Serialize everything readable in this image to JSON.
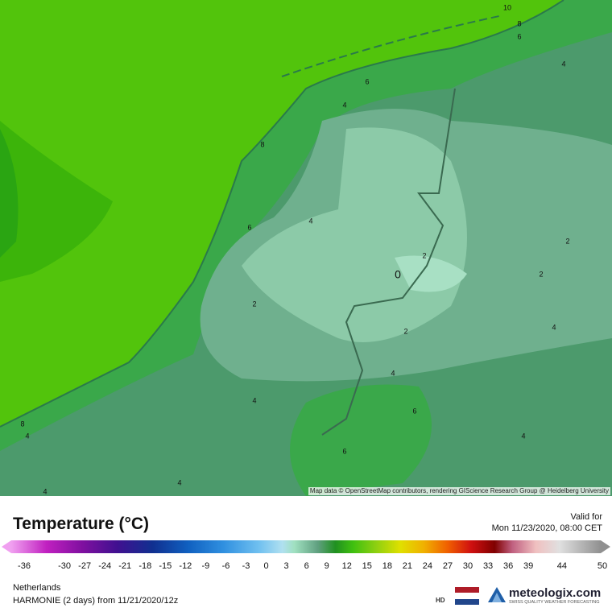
{
  "map": {
    "contour_labels": [
      "10",
      "8",
      "6",
      "6",
      "4",
      "4",
      "8",
      "4",
      "6",
      "2",
      "0",
      "2",
      "2",
      "2",
      "2",
      "4",
      "4",
      "4",
      "6",
      "8",
      "4",
      "4",
      "4",
      "4",
      "6"
    ],
    "attribution": "Map data © OpenStreetMap contributors, rendering GIScience Research Group @ Heidelberg University"
  },
  "legend": {
    "title": "Temperature (°C)",
    "valid_label": "Valid for",
    "valid_time": "Mon 11/23/2020, 08:00 CET",
    "ticks": [
      -36,
      -30,
      -27,
      -24,
      -21,
      -18,
      -15,
      -12,
      -9,
      -6,
      -3,
      0,
      3,
      6,
      9,
      12,
      15,
      18,
      21,
      24,
      27,
      30,
      33,
      36,
      39,
      44,
      50
    ],
    "region": "Netherlands",
    "model": "HARMONIE (2 days) from 11/21/2020/12z",
    "hd": "HD",
    "logo": "meteologix.com",
    "logo_sub": "SWISS QUALITY WEATHER FORECASTING"
  }
}
